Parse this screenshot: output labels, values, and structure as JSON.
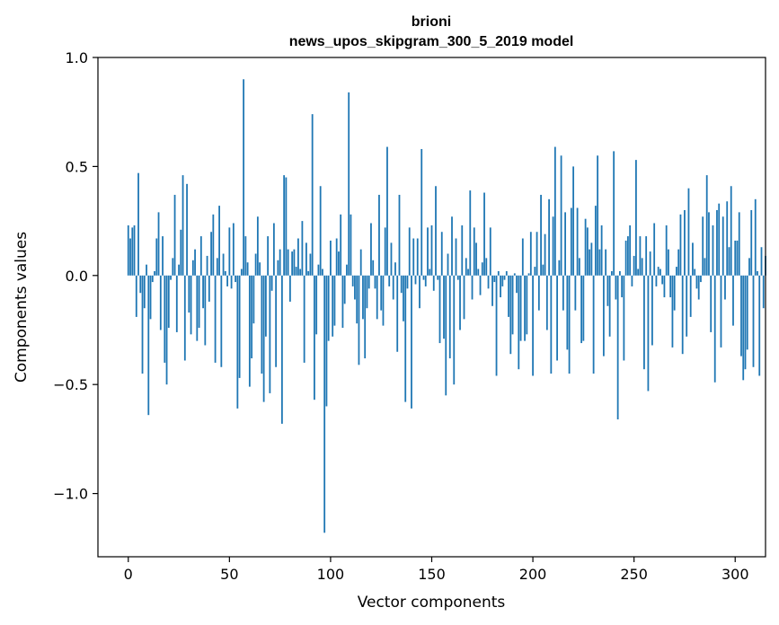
{
  "chart_data": {
    "type": "bar",
    "title": "brioni",
    "subtitle": "news_upos_skipgram_300_5_2019 model",
    "xlabel": "Vector components",
    "ylabel": "Components values",
    "xlim": [
      -15,
      315
    ],
    "ylim": [
      -1.29,
      1.0
    ],
    "xticks": [
      0,
      50,
      100,
      150,
      200,
      250,
      300
    ],
    "yticks": [
      -1.0,
      -0.5,
      0.0,
      0.5,
      1.0
    ],
    "ytick_labels": [
      "−1.0",
      "−0.5",
      "0.0",
      "0.5",
      "1.0"
    ],
    "bar_color": "#1f77b4",
    "values": [
      0.23,
      0.17,
      0.22,
      0.23,
      -0.19,
      0.47,
      -0.08,
      -0.45,
      -0.15,
      0.05,
      -0.64,
      -0.2,
      -0.03,
      0.02,
      0.17,
      0.29,
      -0.25,
      0.18,
      -0.4,
      -0.5,
      -0.24,
      -0.02,
      0.08,
      0.37,
      -0.26,
      0.05,
      0.21,
      0.46,
      -0.39,
      0.42,
      -0.17,
      -0.27,
      0.07,
      0.12,
      -0.3,
      -0.24,
      0.18,
      -0.15,
      -0.32,
      0.09,
      -0.12,
      0.2,
      0.28,
      -0.4,
      0.08,
      0.32,
      -0.42,
      0.1,
      0.02,
      -0.05,
      0.22,
      -0.06,
      0.24,
      -0.03,
      -0.61,
      -0.47,
      0.03,
      0.9,
      0.18,
      0.06,
      -0.51,
      -0.38,
      -0.22,
      0.1,
      0.27,
      0.06,
      -0.45,
      -0.58,
      -0.28,
      0.18,
      -0.54,
      -0.07,
      0.24,
      -0.42,
      0.07,
      0.12,
      -0.68,
      0.46,
      0.45,
      0.12,
      -0.12,
      0.11,
      0.12,
      0.04,
      0.17,
      0.03,
      0.25,
      -0.4,
      0.15,
      0.02,
      0.1,
      0.74,
      -0.57,
      -0.27,
      0.05,
      0.41,
      0.03,
      -1.18,
      -0.6,
      -0.3,
      0.16,
      -0.28,
      -0.23,
      0.17,
      0.11,
      0.28,
      -0.24,
      -0.13,
      0.05,
      0.84,
      0.28,
      -0.05,
      -0.11,
      -0.22,
      -0.41,
      0.12,
      -0.2,
      -0.38,
      -0.15,
      -0.06,
      0.24,
      0.07,
      -0.06,
      -0.2,
      0.37,
      -0.16,
      -0.23,
      0.22,
      0.59,
      -0.05,
      0.15,
      -0.11,
      0.06,
      -0.35,
      0.37,
      -0.08,
      -0.21,
      -0.58,
      -0.06,
      0.22,
      -0.61,
      0.17,
      -0.04,
      0.17,
      -0.15,
      0.58,
      -0.02,
      -0.05,
      0.22,
      0.03,
      0.23,
      -0.07,
      0.41,
      -0.02,
      -0.31,
      0.2,
      -0.29,
      -0.55,
      0.1,
      -0.38,
      0.27,
      -0.5,
      0.17,
      -0.02,
      -0.25,
      0.23,
      -0.2,
      0.08,
      0.03,
      0.39,
      -0.11,
      0.22,
      0.15,
      0.03,
      -0.09,
      0.06,
      0.38,
      0.08,
      -0.06,
      0.22,
      -0.14,
      -0.03,
      -0.46,
      0.02,
      -0.1,
      -0.05,
      -0.02,
      0.02,
      -0.19,
      -0.36,
      -0.27,
      0.01,
      -0.08,
      -0.43,
      -0.3,
      0.17,
      -0.3,
      -0.27,
      0.01,
      0.2,
      -0.46,
      0.04,
      0.2,
      -0.16,
      0.37,
      0.05,
      0.19,
      -0.25,
      0.35,
      -0.45,
      0.27,
      0.59,
      -0.39,
      0.07,
      0.55,
      -0.16,
      0.29,
      -0.34,
      -0.45,
      0.31,
      0.5,
      -0.16,
      0.31,
      0.08,
      -0.31,
      -0.3,
      0.26,
      0.22,
      0.12,
      0.15,
      -0.45,
      0.32,
      0.55,
      0.12,
      0.23,
      -0.37,
      0.12,
      -0.14,
      -0.28,
      0.02,
      0.57,
      -0.11,
      -0.66,
      0.02,
      -0.1,
      -0.39,
      0.16,
      0.18,
      0.23,
      -0.05,
      0.09,
      0.53,
      0.03,
      0.18,
      0.08,
      -0.43,
      0.18,
      -0.53,
      0.11,
      -0.32,
      0.24,
      -0.05,
      0.04,
      0.03,
      -0.04,
      -0.1,
      0.23,
      0.12,
      -0.1,
      -0.33,
      -0.16,
      0.04,
      0.12,
      0.28,
      -0.36,
      0.3,
      -0.28,
      0.4,
      -0.19,
      0.15,
      0.03,
      -0.06,
      -0.11,
      -0.03,
      0.27,
      0.08,
      0.46,
      0.29,
      -0.26,
      0.23,
      -0.49,
      0.3,
      0.33,
      -0.33,
      0.27,
      -0.11,
      0.34,
      0.13,
      0.41,
      -0.23,
      0.16,
      0.16,
      0.29,
      -0.37,
      -0.48,
      -0.43,
      -0.34,
      0.08,
      0.3,
      -0.42,
      0.35,
      0.02,
      -0.46,
      0.13,
      -0.15,
      0.09
    ]
  }
}
